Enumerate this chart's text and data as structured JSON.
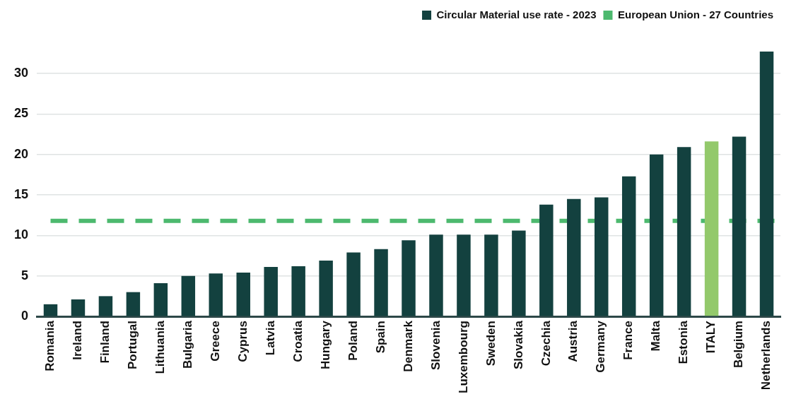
{
  "chart_data": {
    "type": "bar",
    "categories": [
      "Romania",
      "Ireland",
      "Finland",
      "Portugal",
      "Lithuania",
      "Bulgaria",
      "Greece",
      "Cyprus",
      "Latvia",
      "Croatia",
      "Hungary",
      "Poland",
      "Spain",
      "Denmark",
      "Slovenia",
      "Luxembourg",
      "Sweden",
      "Slovakia",
      "Czechia",
      "Austria",
      "Germany",
      "France",
      "Malta",
      "Estonia",
      "ITALY",
      "Belgium",
      "Netherlands"
    ],
    "series": [
      {
        "name": "Circular Material use rate - 2023",
        "color": "#13413f",
        "colors": [
          "#13413f",
          "#13413f",
          "#13413f",
          "#13413f",
          "#13413f",
          "#13413f",
          "#13413f",
          "#13413f",
          "#13413f",
          "#13413f",
          "#13413f",
          "#13413f",
          "#13413f",
          "#13413f",
          "#13413f",
          "#13413f",
          "#13413f",
          "#13413f",
          "#13413f",
          "#13413f",
          "#13413f",
          "#13413f",
          "#13413f",
          "#13413f",
          "#93c96b",
          "#13413f",
          "#13413f"
        ],
        "values": [
          1.5,
          2.1,
          2.5,
          3.0,
          4.1,
          5.0,
          5.3,
          5.4,
          6.1,
          6.2,
          6.9,
          7.9,
          8.3,
          9.4,
          10.1,
          10.1,
          10.1,
          10.6,
          13.8,
          14.5,
          14.7,
          17.3,
          20.0,
          20.9,
          21.6,
          22.2,
          32.7
        ]
      }
    ],
    "ref_lines": [
      {
        "axis": "y",
        "value": 11.8,
        "label": "European Union - 27 Countries",
        "color": "#4cb96e",
        "line_style": "dashed"
      }
    ],
    "ylim": [
      0,
      32.7
    ],
    "yticks": [
      0,
      5,
      10,
      15,
      20,
      25,
      30
    ],
    "grid": "y",
    "legend": "top right"
  }
}
